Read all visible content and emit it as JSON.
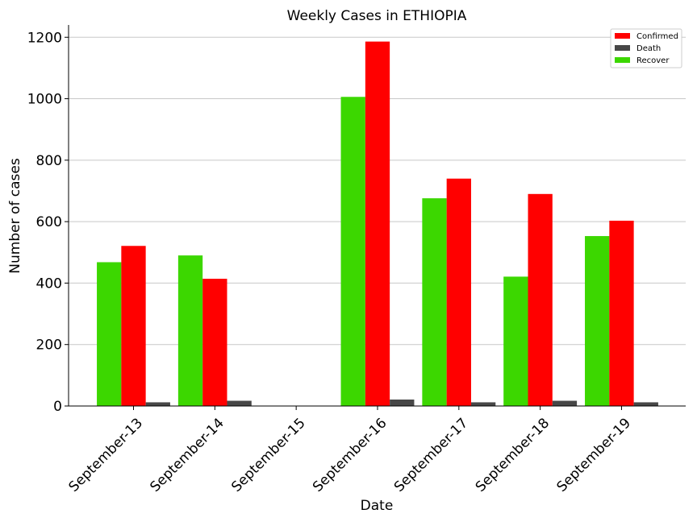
{
  "chart_data": {
    "type": "bar",
    "title": "Weekly Cases in ETHIOPIA",
    "xlabel": "Date",
    "ylabel": "Number of cases",
    "categories": [
      "September-13",
      "September-14",
      "September-15",
      "September-16",
      "September-17",
      "September-18",
      "September-19"
    ],
    "ylim": [
      0,
      1240
    ],
    "yticks": [
      0,
      200,
      400,
      600,
      800,
      1000,
      1200
    ],
    "grid": "horizontal",
    "legend_position": "top-right",
    "series": [
      {
        "name": "Recover",
        "color": "#3cd700",
        "values": [
          468,
          490,
          0,
          1006,
          676,
          421,
          553
        ]
      },
      {
        "name": "Confirmed",
        "color": "#ff0000",
        "values": [
          521,
          414,
          0,
          1186,
          740,
          690,
          603
        ]
      },
      {
        "name": "Death",
        "color": "#474747",
        "values": [
          12,
          17,
          0,
          21,
          12,
          17,
          12
        ]
      }
    ],
    "legend_order": [
      "Confirmed",
      "Death",
      "Recover"
    ]
  }
}
